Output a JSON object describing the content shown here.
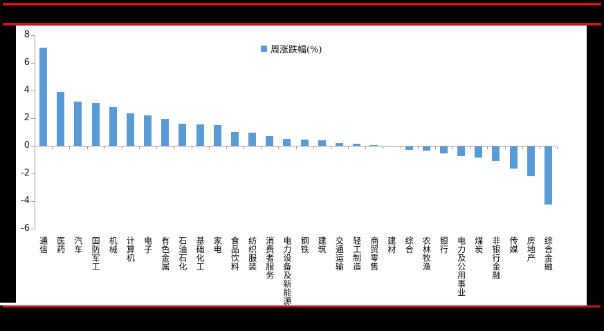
{
  "window": {
    "background_color": "#000000",
    "accent_red": "#c9151e",
    "panel_color": "#ffffff"
  },
  "chart_data": {
    "type": "bar",
    "title": "",
    "xlabel": "",
    "ylabel": "",
    "legend": [
      {
        "label": "周涨跌幅(%)",
        "color": "#5b9bd5"
      }
    ],
    "legend_position": "top-center",
    "grid": false,
    "bar_color": "#5b9bd5",
    "axis_color": "#9e9e9e",
    "ylim": [
      -6,
      8
    ],
    "yticks": [
      8,
      6,
      4,
      2,
      0,
      -2,
      -4,
      -6
    ],
    "categories": [
      "通信",
      "医药",
      "汽车",
      "国防军工",
      "机械",
      "计算机",
      "电子",
      "有色金属",
      "石油石化",
      "基础化工",
      "家电",
      "食品饮料",
      "纺织服装",
      "消费者服务",
      "电力设备及新能源",
      "钢铁",
      "建筑",
      "交通运输",
      "轻工制造",
      "商贸零售",
      "建材",
      "综合",
      "农林牧渔",
      "银行",
      "电力及公用事业",
      "煤炭",
      "非银行金融",
      "传媒",
      "房地产",
      "综合金融"
    ],
    "values": [
      7.1,
      3.9,
      3.2,
      3.1,
      2.8,
      2.35,
      2.2,
      1.95,
      1.6,
      1.55,
      1.5,
      1.0,
      0.95,
      0.7,
      0.5,
      0.45,
      0.4,
      0.2,
      0.15,
      0.05,
      0.02,
      -0.25,
      -0.3,
      -0.5,
      -0.7,
      -0.8,
      -1.05,
      -1.6,
      -2.15,
      -4.2
    ]
  }
}
